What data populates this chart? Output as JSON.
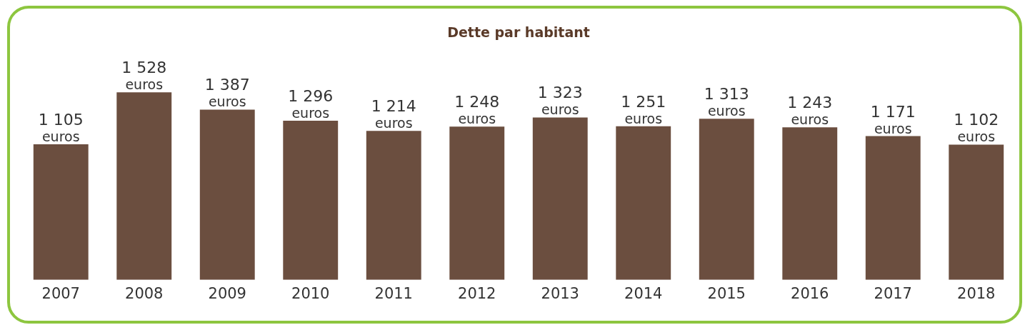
{
  "chart_data": {
    "type": "bar",
    "title": "Dette par habitant",
    "categories": [
      "2007",
      "2008",
      "2009",
      "2010",
      "2011",
      "2012",
      "2013",
      "2014",
      "2015",
      "2016",
      "2017",
      "2018"
    ],
    "values": [
      1105,
      1528,
      1387,
      1296,
      1214,
      1248,
      1323,
      1251,
      1313,
      1243,
      1171,
      1102
    ],
    "value_labels": [
      "1 105\neuros",
      "1 528\neuros",
      "1 387\neuros",
      "1 296\neuros",
      "1 214\neuros",
      "1 248\neuros",
      "1 323\neuros",
      "1 251\neuros",
      "1 313\neuros",
      "1 243\neuros",
      "1 171\neuros",
      "1 102\neuros"
    ],
    "color": "#6b4e3f",
    "tick_labels": "x",
    "grid": false,
    "legend": false
  }
}
